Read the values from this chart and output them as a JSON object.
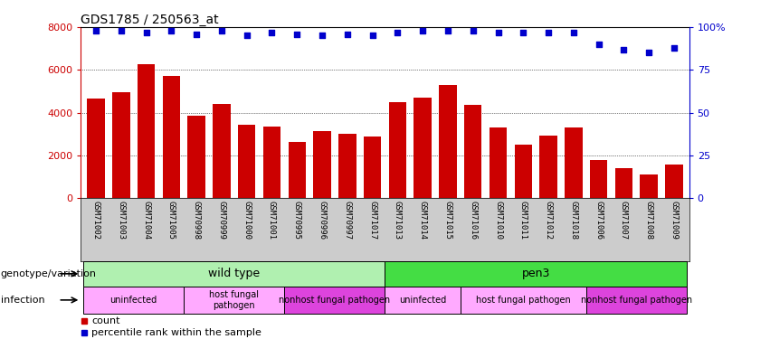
{
  "title": "GDS1785 / 250563_at",
  "samples": [
    "GSM71002",
    "GSM71003",
    "GSM71004",
    "GSM71005",
    "GSM70998",
    "GSM70999",
    "GSM71000",
    "GSM71001",
    "GSM70995",
    "GSM70996",
    "GSM70997",
    "GSM71017",
    "GSM71013",
    "GSM71014",
    "GSM71015",
    "GSM71016",
    "GSM71010",
    "GSM71011",
    "GSM71012",
    "GSM71018",
    "GSM71006",
    "GSM71007",
    "GSM71008",
    "GSM71009"
  ],
  "counts": [
    4650,
    4950,
    6250,
    5700,
    3850,
    4400,
    3450,
    3350,
    2650,
    3150,
    3000,
    2900,
    4500,
    4700,
    5300,
    4350,
    3300,
    2500,
    2950,
    3300,
    1800,
    1400,
    1100,
    1600
  ],
  "percentiles": [
    98,
    98,
    97,
    98,
    96,
    98,
    95,
    97,
    96,
    95,
    96,
    95,
    97,
    98,
    98,
    98,
    97,
    97,
    97,
    97,
    90,
    87,
    85,
    88
  ],
  "bar_color": "#cc0000",
  "dot_color": "#0000cc",
  "ylim_left": [
    0,
    8000
  ],
  "ylim_right": [
    0,
    100
  ],
  "yticks_left": [
    0,
    2000,
    4000,
    6000,
    8000
  ],
  "yticks_right": [
    0,
    25,
    50,
    75,
    100
  ],
  "ytick_labels_right": [
    "0",
    "25",
    "50",
    "75",
    "100%"
  ],
  "grid_values": [
    2000,
    4000,
    6000
  ],
  "genotype_row": [
    {
      "label": "wild type",
      "start": 0,
      "end": 11,
      "color": "#b0f0b0"
    },
    {
      "label": "pen3",
      "start": 12,
      "end": 23,
      "color": "#44dd44"
    }
  ],
  "infection_row": [
    {
      "label": "uninfected",
      "start": 0,
      "end": 3,
      "color": "#ffaaff"
    },
    {
      "label": "host fungal\npathogen",
      "start": 4,
      "end": 7,
      "color": "#ffaaff"
    },
    {
      "label": "nonhost fungal pathogen",
      "start": 8,
      "end": 11,
      "color": "#dd44dd"
    },
    {
      "label": "uninfected",
      "start": 12,
      "end": 14,
      "color": "#ffaaff"
    },
    {
      "label": "host fungal pathogen",
      "start": 15,
      "end": 19,
      "color": "#ffaaff"
    },
    {
      "label": "nonhost fungal pathogen",
      "start": 20,
      "end": 23,
      "color": "#dd44dd"
    }
  ],
  "legend_count_label": "count",
  "legend_pct_label": "percentile rank within the sample",
  "annotation_genotype": "genotype/variation",
  "annotation_infection": "infection",
  "xtick_bg": "#cccccc"
}
